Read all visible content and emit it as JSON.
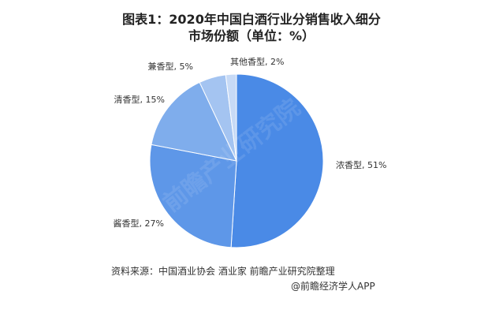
{
  "title_line1": "图表1：2020年中国白酒行业分销售收入细分",
  "title_line2": "市场份额（单位：%）",
  "chart_data": {
    "type": "pie",
    "start_angle_deg": 0,
    "direction": "clockwise",
    "slices": [
      {
        "label": "浓香型, 51%",
        "name": "浓香型",
        "value": 51,
        "color": "#4a8ae6"
      },
      {
        "label": "酱香型, 27%",
        "name": "酱香型",
        "value": 27,
        "color": "#5e97e8"
      },
      {
        "label": "清香型, 15%",
        "name": "清香型",
        "value": 15,
        "color": "#7fadec"
      },
      {
        "label": "兼香型, 5%",
        "name": "兼香型",
        "value": 5,
        "color": "#a4c4f1"
      },
      {
        "label": "其他香型, 2%",
        "name": "其他香型",
        "value": 2,
        "color": "#c7daf6"
      }
    ],
    "legend": "none"
  },
  "source": "资料来源：中国酒业协会 酒业家 前瞻产业研究院整理",
  "credit": "@前瞻经济学人APP",
  "watermark": "前瞻产业研究院"
}
